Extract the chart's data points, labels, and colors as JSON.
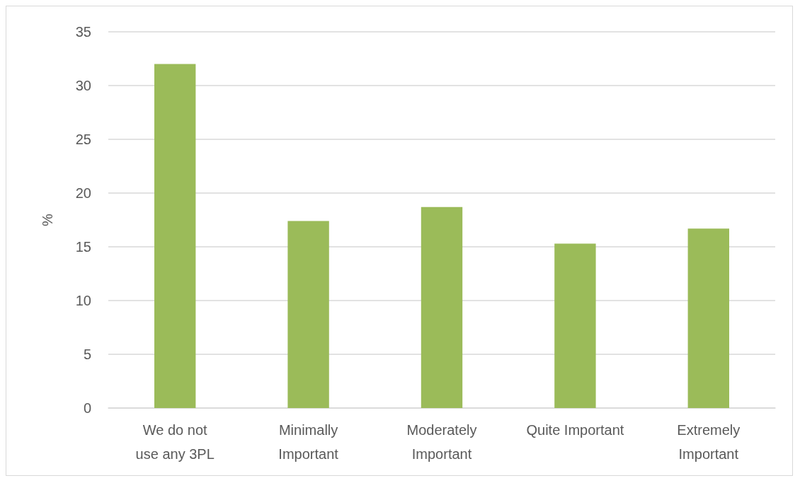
{
  "chart_data": {
    "type": "bar",
    "ylabel": "%",
    "categories": [
      "We do not use any 3PL",
      "Minimally Important",
      "Moderately Important",
      "Quite Important",
      "Extremely Important"
    ],
    "values": [
      32,
      17.4,
      18.7,
      15.3,
      16.7
    ],
    "color": "#9bbb59",
    "ylim": [
      0,
      35
    ],
    "yticks": [
      0,
      5,
      10,
      15,
      20,
      25,
      30,
      35
    ],
    "grid": "y"
  }
}
